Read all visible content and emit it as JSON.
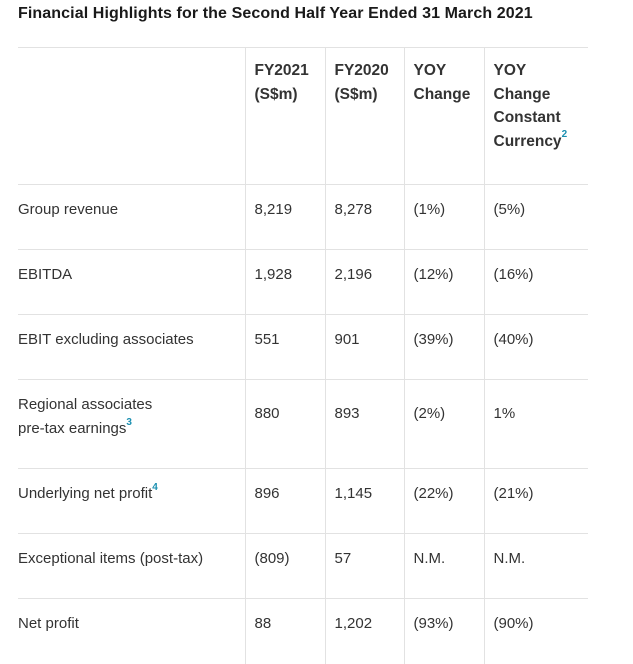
{
  "title": "Financial Highlights for the Second Half Year Ended 31 March 2021",
  "colors": {
    "footnote": "#1a8fb0",
    "border": "#e2e2e2"
  },
  "header": {
    "fy2021": [
      "FY2021",
      "(S$m)"
    ],
    "fy2020": [
      "FY2020",
      "(S$m)"
    ],
    "yoy": [
      "YOY",
      "Change"
    ],
    "yoy_cc": [
      "YOY",
      "Change",
      "Constant",
      "Currency"
    ],
    "yoy_cc_footnote": "2"
  },
  "rows": [
    {
      "label": "Group revenue",
      "fy2021": "8,219",
      "fy2020": "8,278",
      "yoy": "(1%)",
      "yoy_cc": "(5%)"
    },
    {
      "label": "EBITDA",
      "fy2021": "1,928",
      "fy2020": "2,196",
      "yoy": "(12%)",
      "yoy_cc": "(16%)"
    },
    {
      "label": "EBIT excluding associates",
      "fy2021": "551",
      "fy2020": "901",
      "yoy": "(39%)",
      "yoy_cc": "(40%)"
    },
    {
      "label_line1": "Regional associates",
      "label_line2": "pre-tax earnings",
      "footnote": "3",
      "fy2021": "880",
      "fy2020": "893",
      "yoy": "(2%)",
      "yoy_cc": "1%"
    },
    {
      "label": "Underlying net profit",
      "footnote": "4",
      "fy2021": "896",
      "fy2020": "1,145",
      "yoy": "(22%)",
      "yoy_cc": "(21%)"
    },
    {
      "label": "Exceptional items (post-tax)",
      "fy2021": "(809)",
      "fy2020": "57",
      "yoy": "N.M.",
      "yoy_cc": "N.M."
    },
    {
      "label": "Net profit",
      "fy2021": "88",
      "fy2020": "1,202",
      "yoy": "(93%)",
      "yoy_cc": "(90%)"
    }
  ]
}
